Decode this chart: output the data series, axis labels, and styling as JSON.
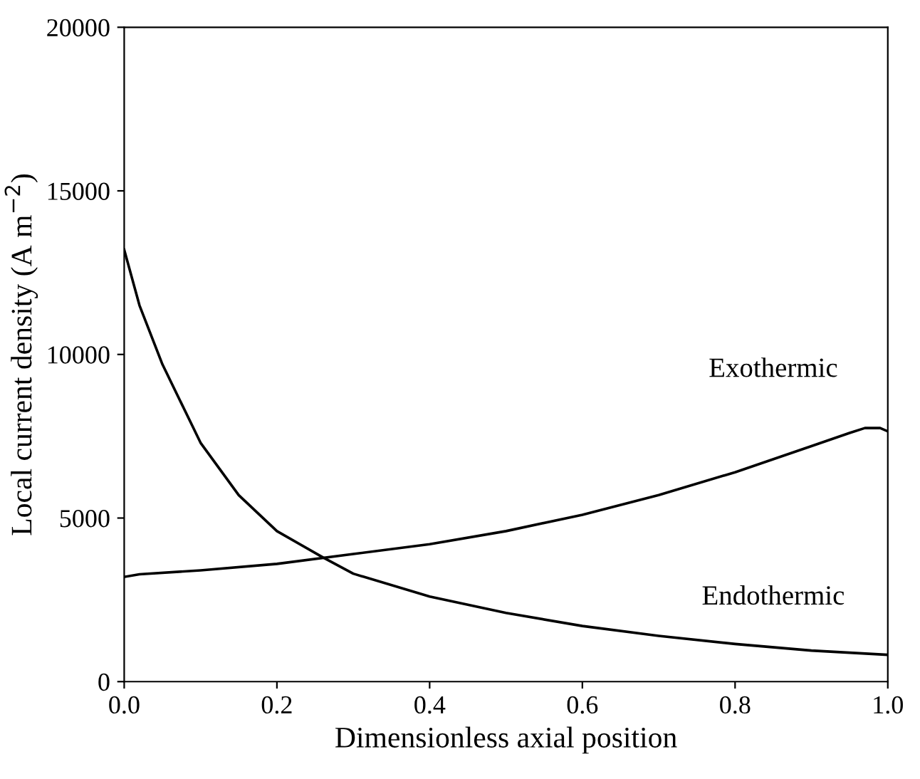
{
  "chart_data": {
    "type": "line",
    "xlabel": "Dimensionless axial position",
    "ylabel": "Local current density (A m$^{−2}$)",
    "xlim": [
      0,
      1
    ],
    "ylim": [
      0,
      20000
    ],
    "xticks": [
      {
        "value": 0,
        "label": "0.0"
      },
      {
        "value": 0.2,
        "label": "0.2"
      },
      {
        "value": 0.4,
        "label": "0.4"
      },
      {
        "value": 0.6,
        "label": "0.6"
      },
      {
        "value": 0.8,
        "label": "0.8"
      },
      {
        "value": 1,
        "label": "1.0"
      }
    ],
    "yticks": [
      0,
      5000,
      10000,
      15000,
      20000
    ],
    "grid": false,
    "legend": false,
    "marker": "none",
    "line_style": "solid",
    "series": [
      {
        "name": "Exothermic",
        "color": "#000000",
        "x": [
          0,
          0.02,
          0.1,
          0.2,
          0.3,
          0.4,
          0.5,
          0.6,
          0.7,
          0.8,
          0.9,
          0.95,
          0.97,
          0.99,
          1.0
        ],
        "values": [
          3200,
          3280,
          3400,
          3600,
          3900,
          4200,
          4600,
          5100,
          5700,
          6400,
          7200,
          7600,
          7750,
          7750,
          7650
        ]
      },
      {
        "name": "Endothermic",
        "color": "#000000",
        "x": [
          0,
          0.02,
          0.05,
          0.1,
          0.15,
          0.2,
          0.26,
          0.3,
          0.4,
          0.5,
          0.6,
          0.7,
          0.8,
          0.9,
          1.0
        ],
        "values": [
          13200,
          11500,
          9700,
          7300,
          5700,
          4600,
          3800,
          3300,
          2600,
          2100,
          1700,
          1400,
          1150,
          950,
          820
        ]
      }
    ]
  }
}
